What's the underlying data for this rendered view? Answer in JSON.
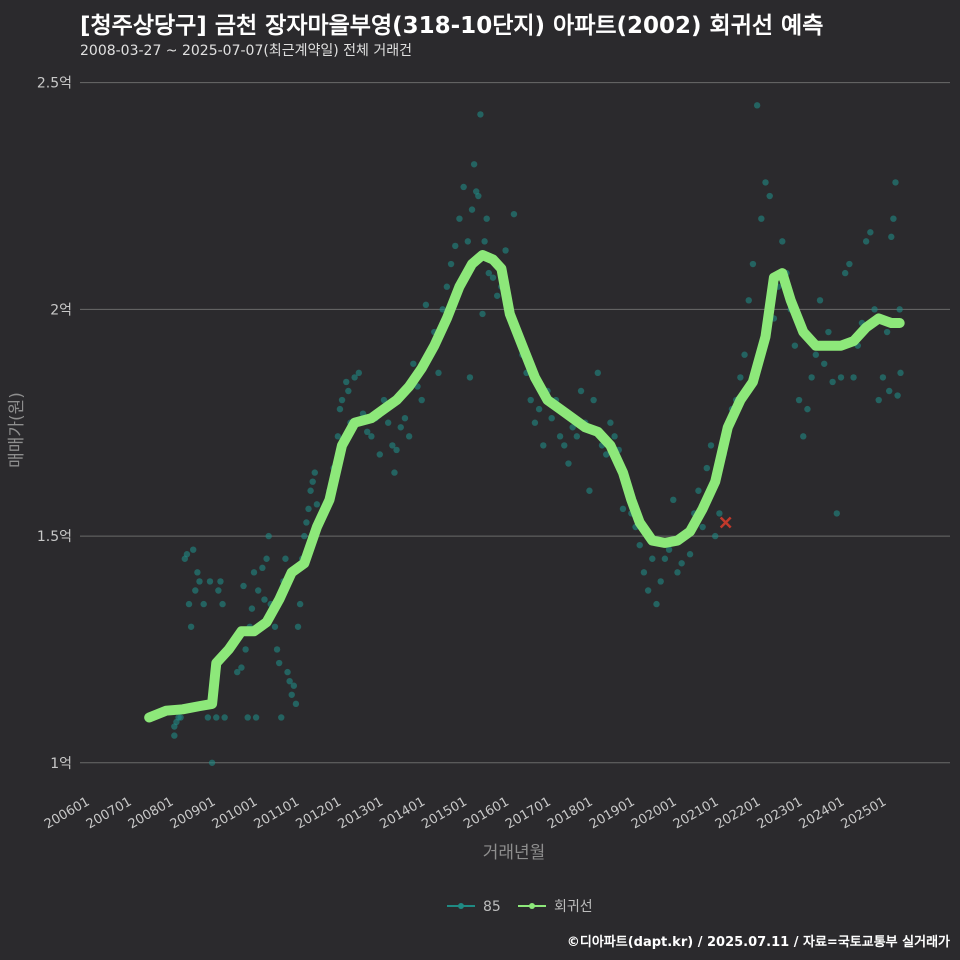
{
  "header": {
    "title": "[청주상당구] 금천 장자마을부영(318-10단지) 아파트(2002) 회귀선 예측",
    "subtitle": "2008-03-27 ~ 2025-07-07(최근계약일) 전체 거래건"
  },
  "footer": {
    "credit": "©디아파트(dapt.kr) / 2025.07.11 / 자료=국토교통부 실거래가"
  },
  "colors": {
    "background": "#2b2a2d",
    "grid": "#6a6a6a",
    "scatter": "#1f8a83",
    "regression": "#8de87a",
    "highlight": "#c0392b"
  },
  "chart_data": {
    "type": "scatter",
    "title": "[청주상당구] 금천 장자마을부영(318-10단지) 아파트(2002) 회귀선 예측",
    "xlabel": "거래년월",
    "ylabel": "매매가(원)",
    "xlim": [
      2005.75,
      2026.5
    ],
    "ylim": [
      0.94,
      2.55
    ],
    "y_ticks": [
      {
        "value": 1.0,
        "label": "1억"
      },
      {
        "value": 1.5,
        "label": "1.5억"
      },
      {
        "value": 2.0,
        "label": "2억"
      },
      {
        "value": 2.5,
        "label": "2.5억"
      }
    ],
    "x_ticks": [
      {
        "value": 2006,
        "label": "200601"
      },
      {
        "value": 2007,
        "label": "200701"
      },
      {
        "value": 2008,
        "label": "200801"
      },
      {
        "value": 2009,
        "label": "200901"
      },
      {
        "value": 2010,
        "label": "201001"
      },
      {
        "value": 2011,
        "label": "201101"
      },
      {
        "value": 2012,
        "label": "201201"
      },
      {
        "value": 2013,
        "label": "201301"
      },
      {
        "value": 2014,
        "label": "201401"
      },
      {
        "value": 2015,
        "label": "201501"
      },
      {
        "value": 2016,
        "label": "201601"
      },
      {
        "value": 2017,
        "label": "201701"
      },
      {
        "value": 2018,
        "label": "201801"
      },
      {
        "value": 2019,
        "label": "201901"
      },
      {
        "value": 2020,
        "label": "202001"
      },
      {
        "value": 2021,
        "label": "202101"
      },
      {
        "value": 2022,
        "label": "202201"
      },
      {
        "value": 2023,
        "label": "202301"
      },
      {
        "value": 2024,
        "label": "202401"
      },
      {
        "value": 2025,
        "label": "202501"
      }
    ],
    "legend": [
      {
        "name": "85",
        "color": "#1f8a83"
      },
      {
        "name": "회귀선",
        "color": "#8de87a"
      }
    ],
    "regression": [
      [
        2007.4,
        1.1
      ],
      [
        2007.8,
        1.115
      ],
      [
        2008.2,
        1.118
      ],
      [
        2008.6,
        1.125
      ],
      [
        2008.9,
        1.13
      ],
      [
        2009.0,
        1.22
      ],
      [
        2009.3,
        1.25
      ],
      [
        2009.6,
        1.29
      ],
      [
        2009.9,
        1.29
      ],
      [
        2010.2,
        1.31
      ],
      [
        2010.5,
        1.36
      ],
      [
        2010.8,
        1.42
      ],
      [
        2011.1,
        1.44
      ],
      [
        2011.4,
        1.52
      ],
      [
        2011.7,
        1.58
      ],
      [
        2012.0,
        1.7
      ],
      [
        2012.3,
        1.75
      ],
      [
        2012.7,
        1.76
      ],
      [
        2013.0,
        1.78
      ],
      [
        2013.3,
        1.8
      ],
      [
        2013.6,
        1.83
      ],
      [
        2013.9,
        1.87
      ],
      [
        2014.2,
        1.92
      ],
      [
        2014.5,
        1.98
      ],
      [
        2014.8,
        2.05
      ],
      [
        2015.1,
        2.1
      ],
      [
        2015.35,
        2.12
      ],
      [
        2015.6,
        2.11
      ],
      [
        2015.8,
        2.09
      ],
      [
        2016.0,
        1.99
      ],
      [
        2016.3,
        1.92
      ],
      [
        2016.6,
        1.85
      ],
      [
        2016.9,
        1.8
      ],
      [
        2017.2,
        1.78
      ],
      [
        2017.5,
        1.76
      ],
      [
        2017.8,
        1.74
      ],
      [
        2018.1,
        1.73
      ],
      [
        2018.4,
        1.7
      ],
      [
        2018.7,
        1.64
      ],
      [
        2018.9,
        1.58
      ],
      [
        2019.1,
        1.53
      ],
      [
        2019.4,
        1.49
      ],
      [
        2019.7,
        1.485
      ],
      [
        2020.0,
        1.49
      ],
      [
        2020.3,
        1.51
      ],
      [
        2020.6,
        1.56
      ],
      [
        2020.9,
        1.62
      ],
      [
        2021.2,
        1.74
      ],
      [
        2021.5,
        1.8
      ],
      [
        2021.8,
        1.84
      ],
      [
        2022.1,
        1.94
      ],
      [
        2022.3,
        2.07
      ],
      [
        2022.5,
        2.08
      ],
      [
        2022.7,
        2.02
      ],
      [
        2023.0,
        1.95
      ],
      [
        2023.3,
        1.92
      ],
      [
        2023.6,
        1.92
      ],
      [
        2023.9,
        1.92
      ],
      [
        2024.2,
        1.93
      ],
      [
        2024.5,
        1.96
      ],
      [
        2024.8,
        1.98
      ],
      [
        2025.1,
        1.97
      ],
      [
        2025.3,
        1.97
      ]
    ],
    "highlight_point": {
      "x": 2021.15,
      "y": 1.53
    },
    "points": [
      [
        2008.0,
        1.06
      ],
      [
        2008.0,
        1.08
      ],
      [
        2008.05,
        1.09
      ],
      [
        2008.1,
        1.1
      ],
      [
        2008.15,
        1.1
      ],
      [
        2008.2,
        1.12
      ],
      [
        2008.25,
        1.45
      ],
      [
        2008.3,
        1.46
      ],
      [
        2008.35,
        1.35
      ],
      [
        2008.4,
        1.3
      ],
      [
        2008.45,
        1.47
      ],
      [
        2008.5,
        1.38
      ],
      [
        2008.55,
        1.42
      ],
      [
        2008.6,
        1.4
      ],
      [
        2008.7,
        1.35
      ],
      [
        2008.8,
        1.1
      ],
      [
        2008.85,
        1.4
      ],
      [
        2008.9,
        1.0
      ],
      [
        2009.0,
        1.1
      ],
      [
        2009.05,
        1.38
      ],
      [
        2009.1,
        1.4
      ],
      [
        2009.15,
        1.35
      ],
      [
        2009.2,
        1.1
      ],
      [
        2009.5,
        1.2
      ],
      [
        2009.6,
        1.21
      ],
      [
        2009.65,
        1.39
      ],
      [
        2009.7,
        1.25
      ],
      [
        2009.75,
        1.1
      ],
      [
        2009.8,
        1.3
      ],
      [
        2009.85,
        1.34
      ],
      [
        2009.9,
        1.42
      ],
      [
        2009.95,
        1.1
      ],
      [
        2010.0,
        1.38
      ],
      [
        2010.1,
        1.43
      ],
      [
        2010.15,
        1.36
      ],
      [
        2010.2,
        1.45
      ],
      [
        2010.25,
        1.5
      ],
      [
        2010.3,
        1.35
      ],
      [
        2010.4,
        1.3
      ],
      [
        2010.45,
        1.25
      ],
      [
        2010.5,
        1.22
      ],
      [
        2010.55,
        1.1
      ],
      [
        2010.6,
        1.4
      ],
      [
        2010.65,
        1.45
      ],
      [
        2010.7,
        1.2
      ],
      [
        2010.75,
        1.18
      ],
      [
        2010.8,
        1.15
      ],
      [
        2010.85,
        1.17
      ],
      [
        2010.9,
        1.13
      ],
      [
        2010.95,
        1.3
      ],
      [
        2011.0,
        1.35
      ],
      [
        2011.05,
        1.45
      ],
      [
        2011.1,
        1.5
      ],
      [
        2011.15,
        1.53
      ],
      [
        2011.2,
        1.56
      ],
      [
        2011.25,
        1.6
      ],
      [
        2011.3,
        1.62
      ],
      [
        2011.35,
        1.64
      ],
      [
        2011.4,
        1.57
      ],
      [
        2011.6,
        1.55
      ],
      [
        2011.7,
        1.6
      ],
      [
        2011.8,
        1.65
      ],
      [
        2011.9,
        1.72
      ],
      [
        2011.95,
        1.78
      ],
      [
        2012.0,
        1.8
      ],
      [
        2012.1,
        1.84
      ],
      [
        2012.15,
        1.82
      ],
      [
        2012.2,
        1.75
      ],
      [
        2012.3,
        1.85
      ],
      [
        2012.4,
        1.86
      ],
      [
        2012.5,
        1.77
      ],
      [
        2012.6,
        1.73
      ],
      [
        2012.7,
        1.72
      ],
      [
        2012.8,
        1.76
      ],
      [
        2012.9,
        1.68
      ],
      [
        2013.0,
        1.8
      ],
      [
        2013.1,
        1.75
      ],
      [
        2013.2,
        1.7
      ],
      [
        2013.25,
        1.64
      ],
      [
        2013.3,
        1.69
      ],
      [
        2013.4,
        1.74
      ],
      [
        2013.5,
        1.76
      ],
      [
        2013.6,
        1.72
      ],
      [
        2013.7,
        1.88
      ],
      [
        2013.8,
        1.83
      ],
      [
        2013.9,
        1.8
      ],
      [
        2014.0,
        2.01
      ],
      [
        2014.1,
        1.9
      ],
      [
        2014.2,
        1.95
      ],
      [
        2014.3,
        1.86
      ],
      [
        2014.4,
        2.0
      ],
      [
        2014.5,
        2.05
      ],
      [
        2014.6,
        2.1
      ],
      [
        2014.7,
        2.14
      ],
      [
        2014.8,
        2.2
      ],
      [
        2014.9,
        2.27
      ],
      [
        2015.0,
        2.15
      ],
      [
        2015.05,
        1.85
      ],
      [
        2015.1,
        2.22
      ],
      [
        2015.15,
        2.32
      ],
      [
        2015.2,
        2.26
      ],
      [
        2015.25,
        2.25
      ],
      [
        2015.3,
        2.43
      ],
      [
        2015.35,
        1.99
      ],
      [
        2015.4,
        2.15
      ],
      [
        2015.45,
        2.2
      ],
      [
        2015.5,
        2.08
      ],
      [
        2015.6,
        2.07
      ],
      [
        2015.7,
        2.03
      ],
      [
        2015.8,
        2.05
      ],
      [
        2015.9,
        2.13
      ],
      [
        2016.1,
        2.21
      ],
      [
        2016.2,
        1.95
      ],
      [
        2016.3,
        1.9
      ],
      [
        2016.4,
        1.86
      ],
      [
        2016.5,
        1.8
      ],
      [
        2016.6,
        1.75
      ],
      [
        2016.7,
        1.78
      ],
      [
        2016.8,
        1.7
      ],
      [
        2016.9,
        1.82
      ],
      [
        2017.0,
        1.76
      ],
      [
        2017.1,
        1.8
      ],
      [
        2017.2,
        1.72
      ],
      [
        2017.3,
        1.7
      ],
      [
        2017.4,
        1.66
      ],
      [
        2017.5,
        1.74
      ],
      [
        2017.6,
        1.72
      ],
      [
        2017.7,
        1.82
      ],
      [
        2017.8,
        1.75
      ],
      [
        2017.9,
        1.6
      ],
      [
        2018.0,
        1.8
      ],
      [
        2018.1,
        1.86
      ],
      [
        2018.2,
        1.7
      ],
      [
        2018.3,
        1.68
      ],
      [
        2018.4,
        1.75
      ],
      [
        2018.5,
        1.72
      ],
      [
        2018.6,
        1.69
      ],
      [
        2018.7,
        1.56
      ],
      [
        2018.8,
        1.6
      ],
      [
        2018.9,
        1.55
      ],
      [
        2019.0,
        1.52
      ],
      [
        2019.1,
        1.48
      ],
      [
        2019.2,
        1.42
      ],
      [
        2019.3,
        1.38
      ],
      [
        2019.4,
        1.45
      ],
      [
        2019.5,
        1.35
      ],
      [
        2019.6,
        1.4
      ],
      [
        2019.7,
        1.45
      ],
      [
        2019.8,
        1.47
      ],
      [
        2019.9,
        1.58
      ],
      [
        2020.0,
        1.42
      ],
      [
        2020.1,
        1.44
      ],
      [
        2020.2,
        1.5
      ],
      [
        2020.3,
        1.46
      ],
      [
        2020.4,
        1.55
      ],
      [
        2020.5,
        1.6
      ],
      [
        2020.6,
        1.52
      ],
      [
        2020.7,
        1.65
      ],
      [
        2020.8,
        1.7
      ],
      [
        2020.9,
        1.5
      ],
      [
        2021.0,
        1.55
      ],
      [
        2021.1,
        1.68
      ],
      [
        2021.2,
        1.72
      ],
      [
        2021.3,
        1.78
      ],
      [
        2021.4,
        1.8
      ],
      [
        2021.5,
        1.85
      ],
      [
        2021.6,
        1.9
      ],
      [
        2021.7,
        2.02
      ],
      [
        2021.8,
        2.1
      ],
      [
        2021.9,
        2.45
      ],
      [
        2022.0,
        2.2
      ],
      [
        2022.1,
        2.28
      ],
      [
        2022.2,
        2.25
      ],
      [
        2022.3,
        1.98
      ],
      [
        2022.4,
        2.05
      ],
      [
        2022.5,
        2.15
      ],
      [
        2022.6,
        2.08
      ],
      [
        2022.7,
        2.0
      ],
      [
        2022.8,
        1.92
      ],
      [
        2022.9,
        1.8
      ],
      [
        2023.0,
        1.72
      ],
      [
        2023.1,
        1.78
      ],
      [
        2023.2,
        1.85
      ],
      [
        2023.3,
        1.9
      ],
      [
        2023.4,
        2.02
      ],
      [
        2023.5,
        1.88
      ],
      [
        2023.6,
        1.95
      ],
      [
        2023.7,
        1.84
      ],
      [
        2023.8,
        1.55
      ],
      [
        2023.9,
        1.85
      ],
      [
        2024.0,
        2.08
      ],
      [
        2024.1,
        2.1
      ],
      [
        2024.2,
        1.85
      ],
      [
        2024.3,
        1.92
      ],
      [
        2024.4,
        1.97
      ],
      [
        2024.5,
        2.15
      ],
      [
        2024.6,
        2.17
      ],
      [
        2024.7,
        2.0
      ],
      [
        2024.8,
        1.8
      ],
      [
        2024.9,
        1.85
      ],
      [
        2025.0,
        1.95
      ],
      [
        2025.05,
        1.82
      ],
      [
        2025.1,
        2.16
      ],
      [
        2025.15,
        2.2
      ],
      [
        2025.2,
        2.28
      ],
      [
        2025.25,
        1.81
      ],
      [
        2025.3,
        2.0
      ],
      [
        2025.32,
        1.86
      ]
    ]
  }
}
